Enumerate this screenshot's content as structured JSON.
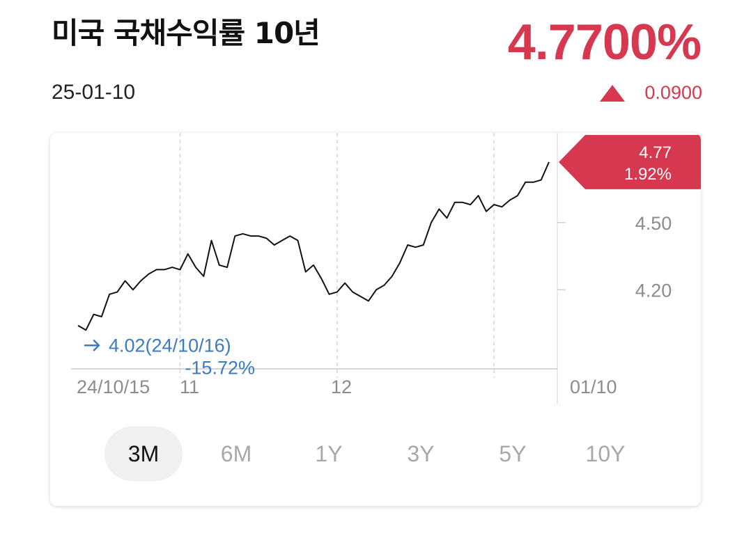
{
  "header": {
    "title": "미국 국채수익률 10년",
    "price": "4.7700%",
    "date": "25-01-10",
    "change": "0.0900"
  },
  "colors": {
    "up": "#d63850",
    "low": "#3a7bc2",
    "line": "#111111"
  },
  "chart_data": {
    "type": "line",
    "x": [
      "24/10/15",
      "24/10/16",
      "24/10/17",
      "24/10/18",
      "24/10/21",
      "24/10/22",
      "24/10/23",
      "24/10/24",
      "24/10/25",
      "24/10/28",
      "24/10/29",
      "24/10/30",
      "24/10/31",
      "24/11/01",
      "24/11/04",
      "24/11/05",
      "24/11/06",
      "24/11/07",
      "24/11/08",
      "24/11/11",
      "24/11/12",
      "24/11/13",
      "24/11/14",
      "24/11/15",
      "24/11/18",
      "24/11/19",
      "24/11/20",
      "24/11/21",
      "24/11/22",
      "24/11/25",
      "24/11/26",
      "24/11/27",
      "24/11/29",
      "24/12/02",
      "24/12/03",
      "24/12/04",
      "24/12/05",
      "24/12/06",
      "24/12/09",
      "24/12/10",
      "24/12/11",
      "24/12/12",
      "24/12/13",
      "24/12/16",
      "24/12/17",
      "24/12/18",
      "24/12/19",
      "24/12/20",
      "24/12/23",
      "24/12/24",
      "24/12/26",
      "24/12/27",
      "24/12/30",
      "24/12/31",
      "25/01/02",
      "25/01/03",
      "25/01/06",
      "25/01/07",
      "25/01/08",
      "25/01/09",
      "25/01/10"
    ],
    "values": [
      4.04,
      4.02,
      4.09,
      4.08,
      4.18,
      4.19,
      4.24,
      4.2,
      4.24,
      4.27,
      4.29,
      4.29,
      4.3,
      4.29,
      4.36,
      4.3,
      4.26,
      4.42,
      4.31,
      4.3,
      4.44,
      4.45,
      4.44,
      4.44,
      4.43,
      4.4,
      4.42,
      4.44,
      4.42,
      4.28,
      4.31,
      4.25,
      4.18,
      4.19,
      4.23,
      4.19,
      4.17,
      4.15,
      4.2,
      4.22,
      4.26,
      4.32,
      4.4,
      4.39,
      4.4,
      4.5,
      4.56,
      4.52,
      4.59,
      4.59,
      4.58,
      4.62,
      4.55,
      4.58,
      4.57,
      4.6,
      4.62,
      4.68,
      4.68,
      4.69,
      4.77
    ],
    "ylim": [
      3.85,
      4.9
    ],
    "y_ticks": [
      "4.50",
      "4.20"
    ],
    "y_tick_values": [
      4.5,
      4.2
    ],
    "x_ticks": [
      {
        "label": "24/10/15",
        "index": 0
      },
      {
        "label": "11",
        "index": 13
      },
      {
        "label": "12",
        "index": 33
      },
      {
        "label": "01/10",
        "index": 60
      }
    ],
    "last_label": {
      "value": "4.77",
      "percent": "1.92%"
    },
    "low_label": {
      "value": "4.02(24/10/16)",
      "percent": "-15.72%",
      "index": 1
    },
    "grid_dividers": [
      13,
      33,
      53
    ]
  },
  "tabs": [
    {
      "label": "3M",
      "active": true
    },
    {
      "label": "6M",
      "active": false
    },
    {
      "label": "1Y",
      "active": false
    },
    {
      "label": "3Y",
      "active": false
    },
    {
      "label": "5Y",
      "active": false
    },
    {
      "label": "10Y",
      "active": false
    }
  ]
}
